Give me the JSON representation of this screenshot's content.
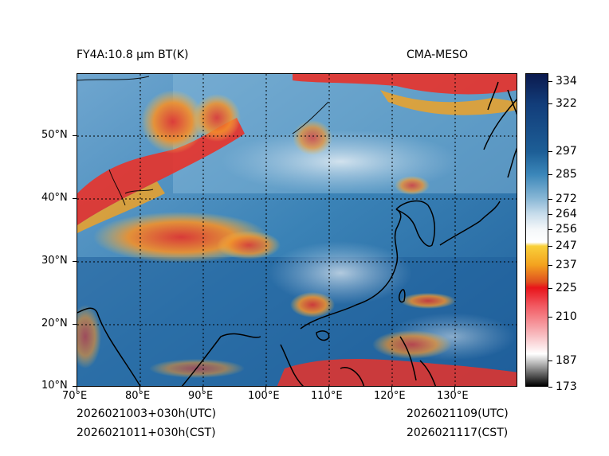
{
  "header": {
    "title_left": "FY4A:10.8 µm BT(K)",
    "title_right": "CMA-MESO"
  },
  "map": {
    "lon_labels": [
      "70°E",
      "80°E",
      "90°E",
      "100°E",
      "110°E",
      "120°E",
      "130°E"
    ],
    "lat_labels": [
      "10°N",
      "20°N",
      "30°N",
      "40°N",
      "50°N"
    ]
  },
  "colorbar": {
    "min": 173,
    "max": 338,
    "tick_labels": [
      "334",
      "322",
      "297",
      "285",
      "272",
      "264",
      "256",
      "247",
      "237",
      "225",
      "210",
      "187",
      "173"
    ],
    "tick_values": [
      334,
      322,
      297,
      285,
      272,
      264,
      256,
      247,
      237,
      225,
      210,
      187,
      173
    ]
  },
  "footer": {
    "init_utc": "2026021003+030h(UTC)",
    "init_cst": "2026021011+030h(CST)",
    "valid_utc": "2026021109(UTC)",
    "valid_cst": "2026021117(CST)"
  },
  "colors": {
    "ocean_deep": "#1f5f9a",
    "ocean_mid": "#3a82b6",
    "land_light": "#7ab0d4",
    "cloud_white": "#e6eef4",
    "cold_red": "#e8322a",
    "cold_orange": "#f6a21e",
    "coast": "#000000"
  }
}
